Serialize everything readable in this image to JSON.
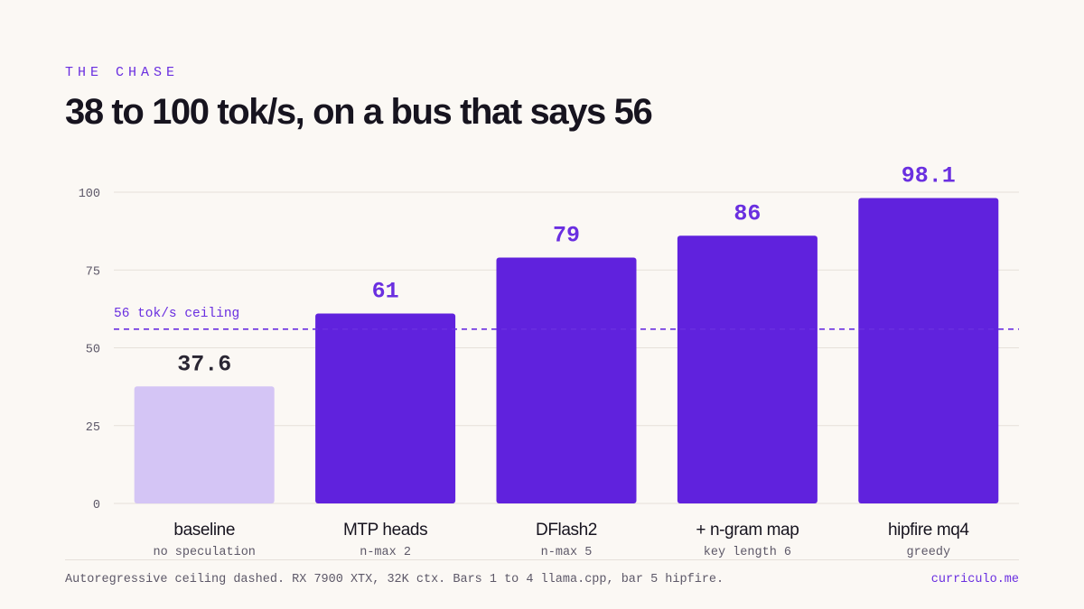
{
  "header": {
    "eyebrow": "THE CHASE",
    "title": "38 to 100 tok/s, on a bus that says 56"
  },
  "chart_data": {
    "type": "bar",
    "title": "38 to 100 tok/s, on a bus that says 56",
    "categories": [
      "baseline",
      "MTP heads",
      "DFlash2",
      "+ n-gram map",
      "hipfire mq4"
    ],
    "subcategories": [
      "no speculation",
      "n-max 2",
      "n-max 5",
      "key length 6",
      "greedy"
    ],
    "values": [
      37.6,
      61,
      79,
      86,
      98.1
    ],
    "value_labels": [
      "37.6",
      "61",
      "79",
      "86",
      "98.1"
    ],
    "ylim": [
      0,
      100
    ],
    "yticks": [
      0,
      25,
      50,
      75,
      100
    ],
    "grid": true,
    "xlabel": "",
    "ylabel": "",
    "reference_line": {
      "value": 56,
      "label": "56 tok/s ceiling",
      "style": "dashed"
    },
    "colors": {
      "below_ceiling": "#d4c5f5",
      "above_ceiling": "#6022dd",
      "label_dark": "#2a2633",
      "label_accent": "#6a2fe0",
      "grid": "#e6e0da",
      "ceiling": "#6a2fe0"
    }
  },
  "footer": {
    "note": "Autoregressive ceiling dashed. RX 7900 XTX, 32K ctx. Bars 1 to 4 llama.cpp, bar 5 hipfire.",
    "site": "curriculo.me"
  }
}
